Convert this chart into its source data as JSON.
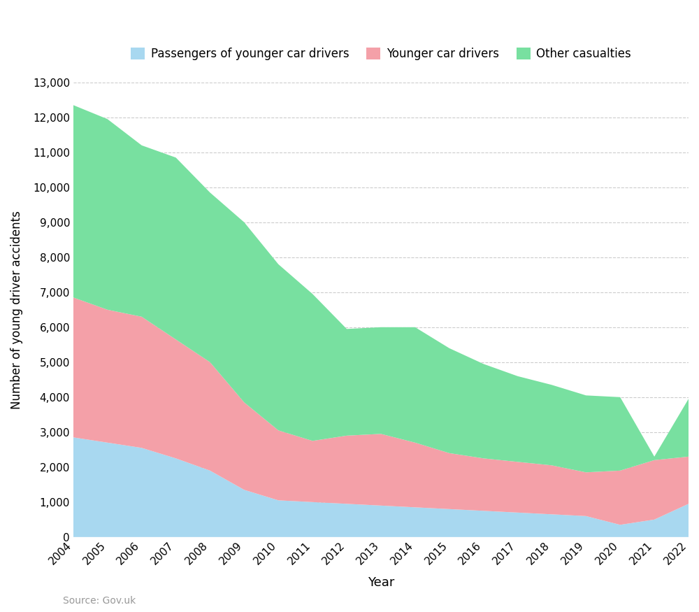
{
  "years": [
    2004,
    2005,
    2006,
    2007,
    2008,
    2009,
    2010,
    2011,
    2012,
    2013,
    2014,
    2015,
    2016,
    2017,
    2018,
    2019,
    2020,
    2021,
    2022
  ],
  "passengers": [
    2850,
    2700,
    2550,
    2250,
    1900,
    1350,
    1050,
    1000,
    950,
    900,
    850,
    800,
    750,
    700,
    650,
    600,
    350,
    500,
    950
  ],
  "younger_drivers": [
    4000,
    3800,
    3750,
    3400,
    3100,
    2500,
    2000,
    1750,
    1950,
    2050,
    1850,
    1600,
    1500,
    1450,
    1400,
    1250,
    1550,
    1700,
    1350
  ],
  "other_casualties": [
    5500,
    5450,
    4900,
    5200,
    4850,
    5150,
    4750,
    4200,
    3050,
    3050,
    3300,
    3000,
    2700,
    2450,
    2300,
    2200,
    2100,
    100,
    1650
  ],
  "series_labels": [
    "Passengers of younger car drivers",
    "Younger car drivers",
    "Other casualties"
  ],
  "series_colors": [
    "#a8d8f0",
    "#f4a0a8",
    "#78e0a0"
  ],
  "xlabel": "Year",
  "ylabel": "Number of young driver accidents",
  "ylim": [
    0,
    13000
  ],
  "yticks": [
    0,
    1000,
    2000,
    3000,
    4000,
    5000,
    6000,
    7000,
    8000,
    9000,
    10000,
    11000,
    12000,
    13000
  ],
  "source_text": "Source: Gov.uk",
  "background_color": "#ffffff",
  "grid_color": "#cccccc"
}
